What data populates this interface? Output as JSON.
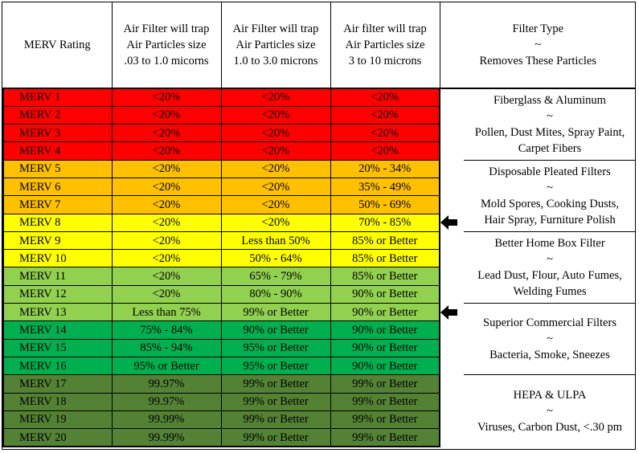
{
  "header": {
    "col1": "MERV Rating",
    "col2": [
      "Air Filter will trap",
      "Air Particles size",
      ".03 to 1.0 micorns"
    ],
    "col3": [
      "Air Filter will trap",
      "Air Particles size",
      "1.0 to 3.0 microns"
    ],
    "col4": [
      "Air filter will trap",
      "Air Particles size",
      "3 to 10 microns"
    ],
    "col5": [
      "Filter Type",
      "~",
      "Removes These Particles"
    ]
  },
  "rows": [
    {
      "merv": "MERV 1",
      "a": "<20%",
      "b": "<20%",
      "c": "<20%",
      "color": "#ff0000"
    },
    {
      "merv": "MERV 2",
      "a": "<20%",
      "b": "<20%",
      "c": "<20%",
      "color": "#ff0000"
    },
    {
      "merv": "MERV 3",
      "a": "<20%",
      "b": "<20%",
      "c": "<20%",
      "color": "#ff0000"
    },
    {
      "merv": "MERV 4",
      "a": "<20%",
      "b": "<20%",
      "c": "<20%",
      "color": "#ff0000"
    },
    {
      "merv": "MERV 5",
      "a": "<20%",
      "b": "<20%",
      "c": "20% - 34%",
      "color": "#ffc000"
    },
    {
      "merv": "MERV 6",
      "a": "<20%",
      "b": "<20%",
      "c": "35% - 49%",
      "color": "#ffc000"
    },
    {
      "merv": "MERV 7",
      "a": "<20%",
      "b": "<20%",
      "c": "50% - 69%",
      "color": "#ffc000"
    },
    {
      "merv": "MERV 8",
      "a": "<20%",
      "b": "<20%",
      "c": "70% - 85%",
      "color": "#ffff00"
    },
    {
      "merv": "MERV 9",
      "a": "<20%",
      "b": "Less than 50%",
      "c": "85% or Better",
      "color": "#ffff00"
    },
    {
      "merv": "MERV 10",
      "a": "<20%",
      "b": "50% - 64%",
      "c": "85% or Better",
      "color": "#ffff00"
    },
    {
      "merv": "MERV 11",
      "a": "<20%",
      "b": "65% - 79%",
      "c": "85% or Better",
      "color": "#92d050"
    },
    {
      "merv": "MERV 12",
      "a": "<20%",
      "b": "80% - 90%",
      "c": "90% or Better",
      "color": "#92d050"
    },
    {
      "merv": "MERV 13",
      "a": "Less than 75%",
      "b": "99% or Better",
      "c": "90% or Better",
      "color": "#92d050"
    },
    {
      "merv": "MERV 14",
      "a": "75% - 84%",
      "b": "90% or Better",
      "c": "90% or Better",
      "color": "#00b050"
    },
    {
      "merv": "MERV 15",
      "a": "85% - 94%",
      "b": "95% or Better",
      "c": "90% or Better",
      "color": "#00b050"
    },
    {
      "merv": "MERV 16",
      "a": "95% or Better",
      "b": "95% or Better",
      "c": "90% or Better",
      "color": "#00b050"
    },
    {
      "merv": "MERV 17",
      "a": "99.97%",
      "b": "99% or Better",
      "c": "99% or Better",
      "color": "#548235"
    },
    {
      "merv": "MERV 18",
      "a": "99.97%",
      "b": "99% or Better",
      "c": "99% or Better",
      "color": "#548235"
    },
    {
      "merv": "MERV 19",
      "a": "99.99%",
      "b": "99% or Better",
      "c": "99% or Better",
      "color": "#548235"
    },
    {
      "merv": "MERV 20",
      "a": "99.99%",
      "b": "99% or Better",
      "c": "99% or Better",
      "color": "#548235"
    }
  ],
  "filter_types": [
    {
      "name": "Fiberglass & Aluminum",
      "sep": "~",
      "removes": [
        "Pollen, Dust Mites, Spray Paint,",
        "Carpet Fibers"
      ],
      "span": 4
    },
    {
      "name": "Disposable Pleated Filters",
      "sep": "~",
      "removes": [
        "Mold Spores, Cooking Dusts,",
        "Hair Spray, Furniture Polish"
      ],
      "span": 4
    },
    {
      "name": "Better Home Box Filter",
      "sep": "~",
      "removes": [
        "Lead Dust, Flour, Auto Fumes,",
        "Welding Fumes"
      ],
      "span": 4
    },
    {
      "name": "Superior Commercial Filters",
      "sep": "~",
      "removes": [
        "Bacteria, Smoke, Sneezes"
      ],
      "span": 4
    },
    {
      "name": "HEPA & ULPA",
      "sep": "~",
      "removes": [
        "Viruses, Carbon Dust, <.30 pm"
      ],
      "span": 4
    }
  ],
  "arrows": [
    {
      "row": 7,
      "icon": "left-arrow-icon"
    },
    {
      "row": 12,
      "icon": "left-arrow-icon"
    }
  ]
}
